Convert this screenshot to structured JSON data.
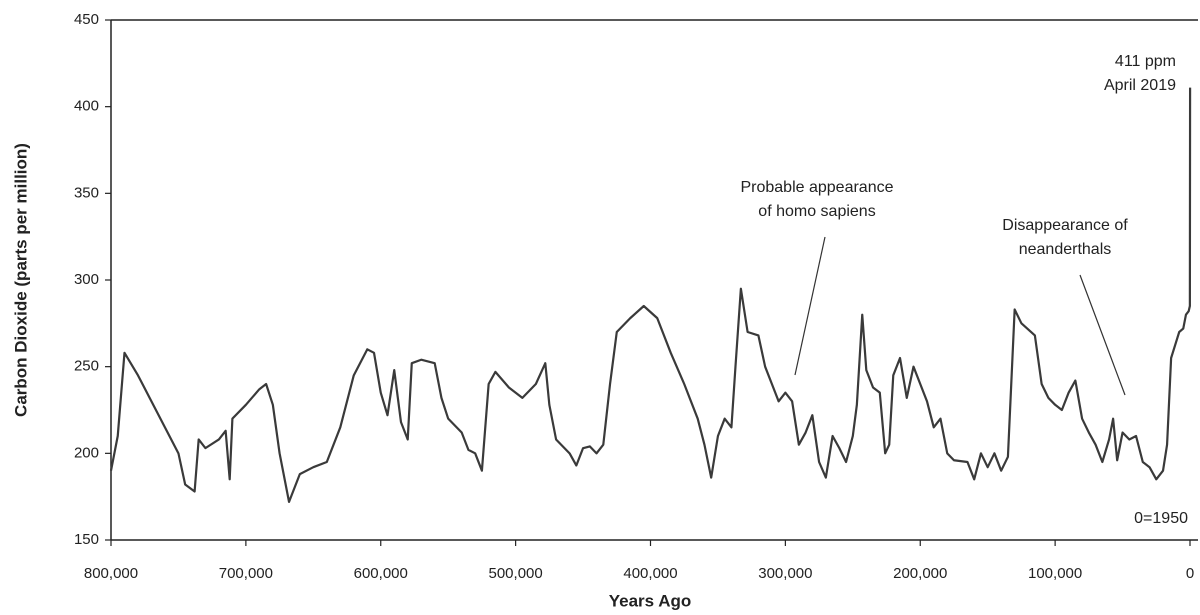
{
  "chart_data": {
    "type": "line",
    "x_label": "Years Ago",
    "y_label": "Carbon Dioxide (parts per million)",
    "color": "#3a3a3a",
    "xlim": [
      800000,
      0
    ],
    "ylim": [
      150,
      450
    ],
    "xticks": [
      {
        "value": 800000,
        "label": "800,000"
      },
      {
        "value": 700000,
        "label": "700,000"
      },
      {
        "value": 600000,
        "label": "600,000"
      },
      {
        "value": 500000,
        "label": "500,000"
      },
      {
        "value": 400000,
        "label": "400,000"
      },
      {
        "value": 300000,
        "label": "300,000"
      },
      {
        "value": 200000,
        "label": "200,000"
      },
      {
        "value": 100000,
        "label": "100,000"
      },
      0
    ],
    "yticks": [
      150,
      200,
      250,
      300,
      350,
      400,
      450
    ],
    "annotations": [
      {
        "lines": [
          "411 ppm",
          "April 2019"
        ]
      },
      {
        "lines": [
          "Probable appearance",
          "of homo sapiens"
        ]
      },
      {
        "lines": [
          "Disappearance of",
          "neanderthals"
        ]
      },
      {
        "lines": [
          "0=1950"
        ]
      }
    ],
    "x": [
      800000,
      795000,
      790000,
      780000,
      770000,
      760000,
      750000,
      745000,
      738000,
      735000,
      730000,
      720000,
      715000,
      712000,
      710000,
      700000,
      690000,
      685000,
      680000,
      675000,
      668000,
      660000,
      650000,
      640000,
      630000,
      620000,
      610000,
      605000,
      600000,
      595000,
      590000,
      585000,
      580000,
      577000,
      570000,
      560000,
      555000,
      550000,
      540000,
      535000,
      530000,
      525000,
      520000,
      515000,
      505000,
      495000,
      485000,
      478000,
      475000,
      470000,
      460000,
      455000,
      450000,
      445000,
      440000,
      435000,
      430000,
      425000,
      415000,
      405000,
      395000,
      385000,
      375000,
      365000,
      360000,
      355000,
      350000,
      345000,
      340000,
      337000,
      333000,
      328000,
      320000,
      315000,
      310000,
      305000,
      300000,
      295000,
      290000,
      285000,
      280000,
      275000,
      270000,
      265000,
      260000,
      255000,
      250000,
      247000,
      243000,
      240000,
      235000,
      230000,
      226000,
      223000,
      220000,
      215000,
      210000,
      205000,
      200000,
      195000,
      190000,
      185000,
      180000,
      175000,
      165000,
      160000,
      155000,
      150000,
      145000,
      140000,
      135000,
      130000,
      125000,
      115000,
      110000,
      105000,
      100000,
      95000,
      90000,
      85000,
      80000,
      75000,
      70000,
      65000,
      60000,
      57000,
      54000,
      50000,
      45000,
      40000,
      35000,
      30000,
      25000,
      20000,
      17000,
      14000,
      10000,
      8000,
      5000,
      3000,
      1000,
      100,
      -69
    ],
    "values": [
      190,
      210,
      258,
      245,
      230,
      215,
      200,
      182,
      178,
      208,
      203,
      208,
      213,
      185,
      220,
      228,
      237,
      240,
      228,
      200,
      172,
      188,
      192,
      195,
      215,
      245,
      260,
      258,
      235,
      222,
      248,
      218,
      208,
      252,
      254,
      252,
      232,
      220,
      212,
      202,
      200,
      190,
      240,
      247,
      238,
      232,
      240,
      252,
      228,
      208,
      200,
      193,
      203,
      204,
      200,
      205,
      240,
      270,
      278,
      285,
      278,
      258,
      240,
      220,
      205,
      186,
      210,
      220,
      215,
      250,
      295,
      270,
      268,
      250,
      240,
      230,
      235,
      230,
      205,
      212,
      222,
      195,
      186,
      210,
      203,
      195,
      210,
      228,
      280,
      248,
      238,
      235,
      200,
      205,
      245,
      255,
      232,
      250,
      240,
      230,
      215,
      220,
      200,
      196,
      195,
      185,
      200,
      192,
      200,
      190,
      198,
      283,
      275,
      268,
      240,
      232,
      228,
      225,
      235,
      242,
      220,
      212,
      205,
      195,
      208,
      220,
      196,
      212,
      208,
      210,
      195,
      192,
      185,
      190,
      205,
      255,
      265,
      270,
      272,
      280,
      282,
      285,
      411
    ]
  }
}
